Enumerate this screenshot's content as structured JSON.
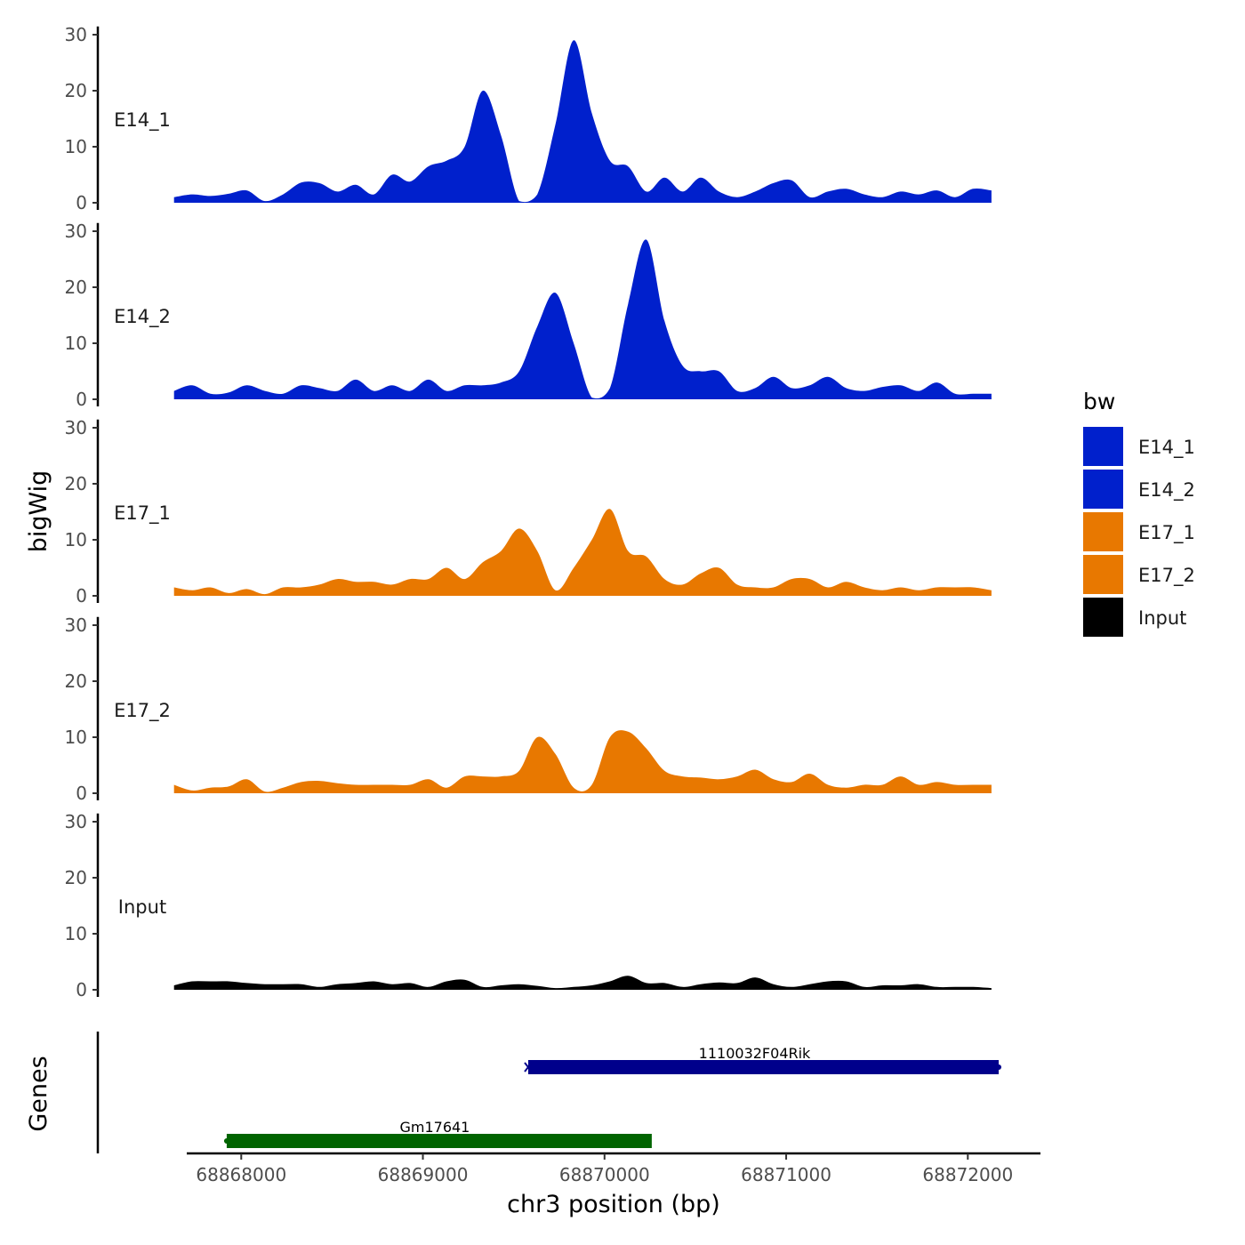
{
  "chart_data": {
    "type": "area",
    "ylabel": "bigWig",
    "xlabel": "chr3 position (bp)",
    "genes_label": "Genes",
    "xlim": [
      67700,
      72400
    ],
    "x_offset": 68800000,
    "x_ticks": [
      68000,
      69000,
      70000,
      71000,
      72000
    ],
    "x_tick_labels": [
      "68868000",
      "68869000",
      "68870000",
      "68871000",
      "68872000"
    ],
    "ylim": [
      0,
      31
    ],
    "y_ticks": [
      0,
      10,
      20,
      30
    ],
    "y_tick_labels": [
      "0",
      "10",
      "20",
      "30"
    ],
    "x_step": 100,
    "tracks": [
      {
        "name": "E14_1",
        "color": "#0020CC",
        "x_start": 67630,
        "values": [
          1,
          1.5,
          1.2,
          1.6,
          2.2,
          0.3,
          1.5,
          3.6,
          3.5,
          2,
          3.2,
          1.5,
          5,
          3.8,
          6.5,
          7.5,
          10,
          20,
          12,
          0.3,
          1.5,
          14,
          29,
          16,
          7.5,
          6.5,
          2,
          4.5,
          2,
          4.5,
          2,
          1,
          2,
          3.5,
          4,
          1,
          2,
          2.5,
          1.5,
          1,
          2,
          1.5,
          2.2,
          1,
          2.5,
          2.2
        ]
      },
      {
        "name": "E14_2",
        "color": "#0020CC",
        "x_start": 67630,
        "values": [
          1.5,
          2.5,
          1,
          1.2,
          2.5,
          1.5,
          1,
          2.5,
          2,
          1.5,
          3.5,
          1.5,
          2.5,
          1.5,
          3.5,
          1.5,
          2.5,
          2.5,
          3,
          5,
          13,
          19,
          10,
          0.3,
          2,
          17,
          28.5,
          14,
          6,
          5,
          5,
          1.5,
          2,
          4,
          2,
          2.5,
          4,
          2,
          1.5,
          2.2,
          2.5,
          1.5,
          3,
          1,
          1,
          1
        ]
      },
      {
        "name": "E17_1",
        "color": "#E87800",
        "x_start": 67630,
        "values": [
          1.5,
          1,
          1.5,
          0.5,
          1.2,
          0.3,
          1.5,
          1.5,
          2,
          3,
          2.5,
          2.5,
          2,
          3,
          3,
          5,
          3,
          6,
          8,
          12,
          8,
          1,
          5,
          10,
          15.5,
          8,
          7,
          3,
          2,
          4,
          5,
          2,
          1.5,
          1.5,
          3,
          3,
          1.5,
          2.5,
          1.5,
          1,
          1.5,
          1,
          1.5,
          1.5,
          1.5,
          1
        ]
      },
      {
        "name": "E17_2",
        "color": "#E87800",
        "x_start": 67630,
        "values": [
          1.5,
          0.5,
          1,
          1.2,
          2.5,
          0.3,
          1,
          2,
          2.2,
          1.8,
          1.5,
          1.5,
          1.5,
          1.5,
          2.5,
          1,
          3,
          3,
          3,
          4,
          10,
          7,
          1,
          1.5,
          10,
          11,
          8,
          4,
          3,
          2.8,
          2.5,
          3,
          4.2,
          2.5,
          2,
          3.5,
          1.5,
          1,
          1.5,
          1.5,
          3,
          1.5,
          2,
          1.5,
          1.5,
          1.5
        ]
      },
      {
        "name": "Input",
        "color": "#000000",
        "x_start": 67630,
        "values": [
          0.8,
          1.5,
          1.5,
          1.5,
          1.2,
          1,
          1,
          1,
          0.5,
          1,
          1.2,
          1.5,
          1,
          1.2,
          0.5,
          1.5,
          1.8,
          0.5,
          0.8,
          1,
          0.7,
          0.3,
          0.5,
          0.8,
          1.5,
          2.5,
          1.2,
          1.2,
          0.5,
          1,
          1.3,
          1.2,
          2.2,
          1,
          0.5,
          1,
          1.5,
          1.5,
          0.5,
          0.8,
          0.8,
          1,
          0.5,
          0.5,
          0.5,
          0.3
        ]
      }
    ],
    "legend": {
      "title": "bw",
      "entries": [
        {
          "label": "E14_1",
          "color": "#0020CC"
        },
        {
          "label": "E14_2",
          "color": "#0020CC"
        },
        {
          "label": "E17_1",
          "color": "#E87800"
        },
        {
          "label": "E17_2",
          "color": "#E87800"
        },
        {
          "label": "Input",
          "color": "#000000"
        }
      ]
    },
    "genes": [
      {
        "name": "1110032F04Rik",
        "start": 69580,
        "end": 72170,
        "color": "#00008B",
        "strand": "-"
      },
      {
        "name": "Gm17641",
        "start": 67920,
        "end": 70260,
        "color": "#006400",
        "strand": "+"
      }
    ]
  }
}
